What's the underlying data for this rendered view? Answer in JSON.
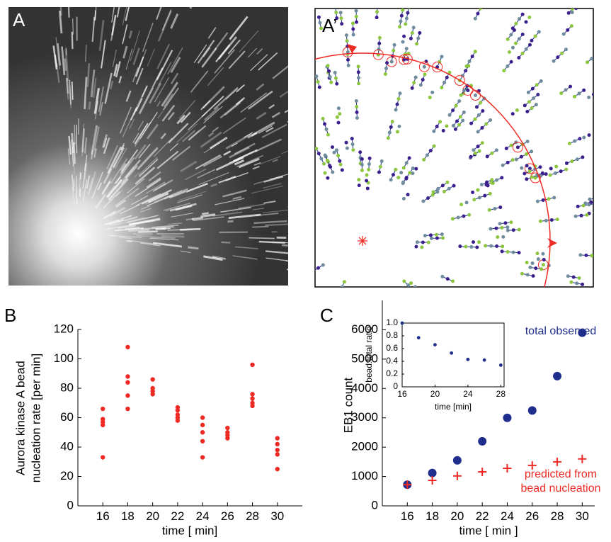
{
  "panel_labels": [
    "A",
    "A’",
    "B",
    "C"
  ],
  "chart_data": [
    {
      "type": "scatter",
      "xlabel": "time [ min]",
      "ylabel": [
        "Aurora kinase A bead",
        "nucleation rate [per min]"
      ],
      "xlim": [
        14,
        32
      ],
      "ylim": [
        0,
        120
      ],
      "xticks": [
        16,
        18,
        20,
        22,
        24,
        26,
        28,
        30
      ],
      "yticks": [
        0,
        20,
        40,
        60,
        80,
        100,
        120
      ],
      "series": [
        {
          "color": "#ee2a24",
          "marker": "o",
          "x": [
            16,
            16,
            16,
            16,
            16,
            18,
            18,
            18,
            18,
            18,
            20,
            20,
            20,
            20,
            22,
            22,
            22,
            22,
            22,
            24,
            24,
            24,
            24,
            24,
            26,
            26,
            26,
            26,
            28,
            28,
            28,
            28,
            28,
            30,
            30,
            30,
            30,
            30
          ],
          "values": [
            66,
            59,
            57,
            55,
            33,
            108,
            88,
            84,
            75,
            66,
            86,
            80,
            78,
            76,
            67,
            65,
            62,
            60,
            58,
            60,
            55,
            50,
            44,
            33,
            53,
            50,
            48,
            46,
            96,
            76,
            73,
            70,
            68,
            46,
            42,
            38,
            35,
            25
          ]
        }
      ]
    },
    {
      "type": "scatter",
      "xlabel": "time [ min ]",
      "ylabel": [
        "EB1 count"
      ],
      "xlim": [
        14,
        31
      ],
      "ylim": [
        0,
        7000
      ],
      "xticks": [
        16,
        18,
        20,
        22,
        24,
        26,
        28,
        30
      ],
      "yticks": [
        0,
        1000,
        2000,
        3000,
        4000,
        5000,
        6000
      ],
      "series": [
        {
          "name": "total observed",
          "color": "#1f2e8c",
          "marker": "o",
          "x": [
            16,
            18,
            20,
            22,
            24,
            26,
            28,
            30
          ],
          "values": [
            720,
            1120,
            1550,
            2200,
            3000,
            3250,
            4420,
            5900
          ]
        },
        {
          "name": "predicted from bead nucleation",
          "color": "#ee2a24",
          "marker": "+",
          "x": [
            16,
            18,
            20,
            22,
            24,
            26,
            28,
            30
          ],
          "values": [
            720,
            870,
            1020,
            1160,
            1280,
            1380,
            1500,
            1600
          ]
        }
      ]
    },
    {
      "type": "scatter",
      "xlabel": "time [min]",
      "ylabel": [
        "bead:total ratio"
      ],
      "xlim": [
        16,
        28.4
      ],
      "ylim": [
        0,
        1
      ],
      "xticks": [
        16,
        20,
        24,
        28
      ],
      "yticks": [
        0,
        0.2,
        0.4,
        0.6,
        0.8,
        {
          "value": 1,
          "label": "1.0"
        }
      ],
      "series": [
        {
          "color": "#1f2e8c",
          "marker": "o",
          "x": [
            16,
            18,
            20,
            22,
            24,
            26,
            28
          ],
          "values": [
            1.0,
            0.77,
            0.66,
            0.53,
            0.43,
            0.42,
            0.34
          ]
        }
      ]
    }
  ]
}
